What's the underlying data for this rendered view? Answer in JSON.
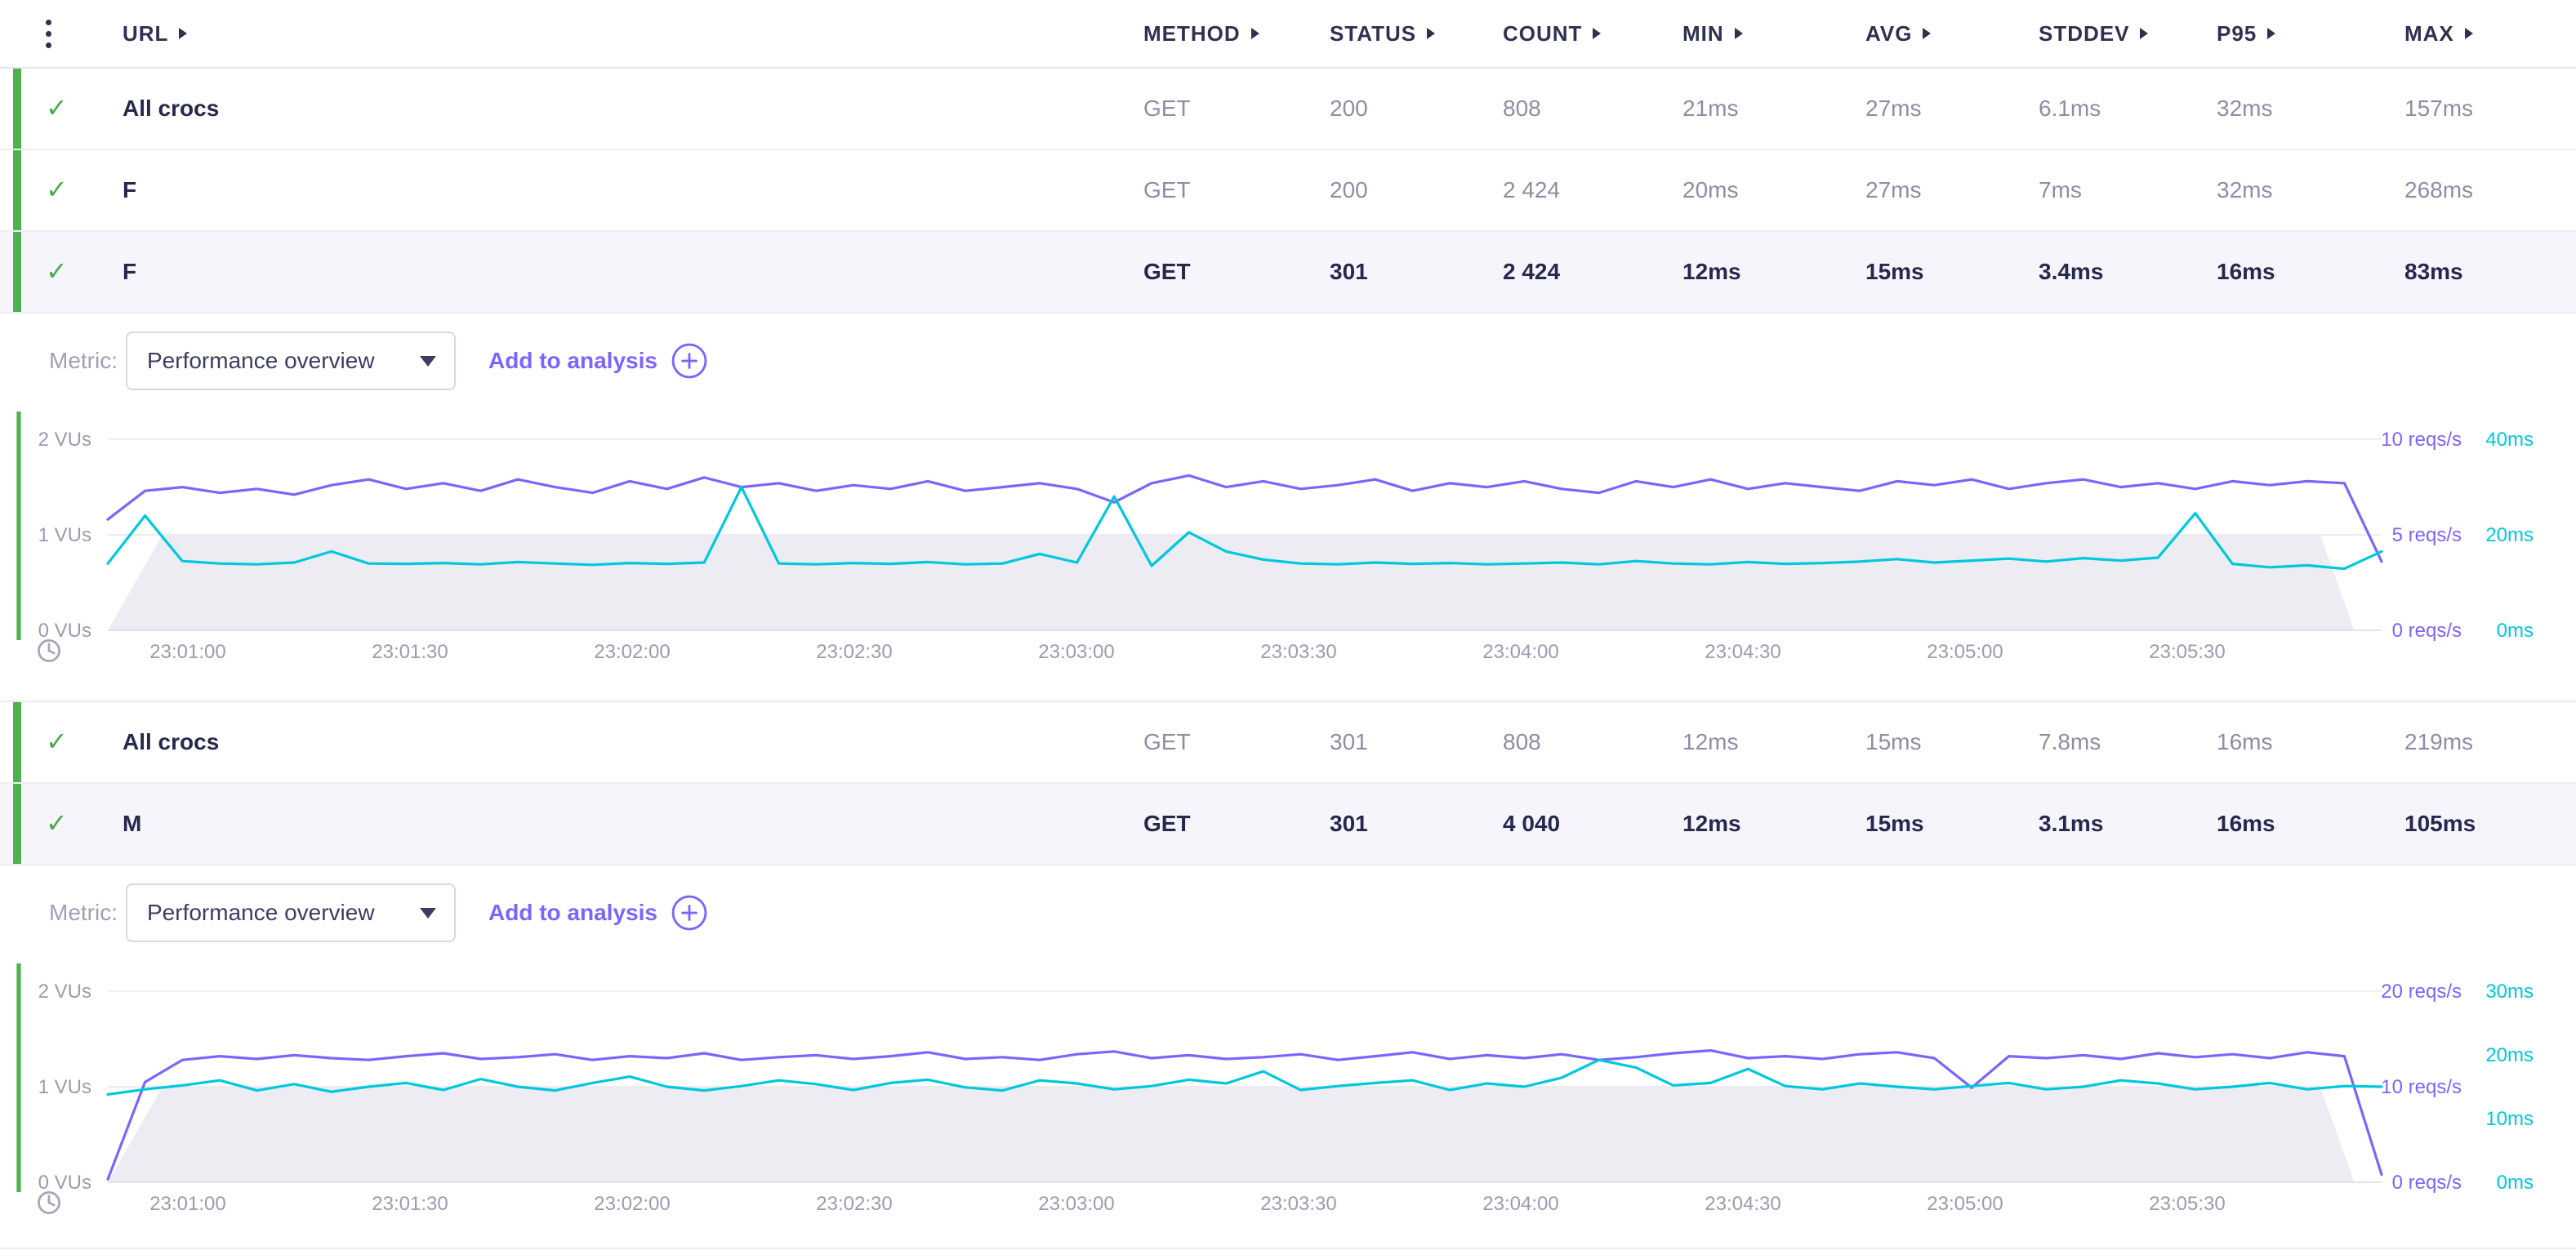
{
  "colors": {
    "purple": "#7d64ff",
    "cyan": "#00c8dc",
    "green": "#4fb04f",
    "gray_area": "#ececf2"
  },
  "header": {
    "menu_icon": "kebab-menu",
    "sort_icon": "triangle-right",
    "columns": [
      "URL",
      "METHOD",
      "STATUS",
      "COUNT",
      "MIN",
      "AVG",
      "STDDEV",
      "P95",
      "MAX"
    ]
  },
  "sections": [
    {
      "rows": [
        {
          "check": "✓",
          "url": "All crocs",
          "method": "GET",
          "status": "200",
          "count": "808",
          "min": "21ms",
          "avg": "27ms",
          "stddev": "6.1ms",
          "p95": "32ms",
          "max": "157ms",
          "selected": false
        },
        {
          "check": "✓",
          "url": "F",
          "method": "GET",
          "status": "200",
          "count": "2 424",
          "min": "20ms",
          "avg": "27ms",
          "stddev": "7ms",
          "p95": "32ms",
          "max": "268ms",
          "selected": false
        },
        {
          "check": "✓",
          "url": "F",
          "method": "GET",
          "status": "301",
          "count": "2 424",
          "min": "12ms",
          "avg": "15ms",
          "stddev": "3.4ms",
          "p95": "16ms",
          "max": "83ms",
          "selected": true
        }
      ],
      "metric_bar": {
        "label": "Metric:",
        "selected_option": "Performance overview",
        "add_button": "Add to analysis"
      }
    },
    {
      "rows": [
        {
          "check": "✓",
          "url": "All crocs",
          "method": "GET",
          "status": "301",
          "count": "808",
          "min": "12ms",
          "avg": "15ms",
          "stddev": "7.8ms",
          "p95": "16ms",
          "max": "219ms",
          "selected": false
        },
        {
          "check": "✓",
          "url": "M",
          "method": "GET",
          "status": "301",
          "count": "4 040",
          "min": "12ms",
          "avg": "15ms",
          "stddev": "3.1ms",
          "p95": "16ms",
          "max": "105ms",
          "selected": true
        }
      ],
      "metric_bar": {
        "label": "Metric:",
        "selected_option": "Performance overview",
        "add_button": "Add to analysis"
      }
    }
  ],
  "chart_data": [
    {
      "type": "line",
      "title": "Performance overview",
      "x_ticks": [
        "23:01:00",
        "23:01:30",
        "23:02:00",
        "23:02:30",
        "23:03:00",
        "23:03:30",
        "23:04:00",
        "23:04:30",
        "23:05:00",
        "23:05:30"
      ],
      "left_axis": {
        "unit": "VUs",
        "ticks": [
          "0 VUs",
          "1 VUs",
          "2 VUs"
        ],
        "max": 2
      },
      "right_labels": [
        {
          "frac": 1,
          "purple": "10 reqs/s",
          "cyan": "40ms"
        },
        {
          "frac": 0.5,
          "purple": "5 reqs/s",
          "cyan": "20ms"
        },
        {
          "frac": 0,
          "purple": "0 reqs/s",
          "cyan": "0ms"
        }
      ],
      "series": [
        {
          "name": "vus",
          "type": "area",
          "color": "gray_area",
          "max": 2,
          "points": [
            [
              0,
              0
            ],
            [
              0.024,
              1
            ],
            [
              0.973,
              1
            ],
            [
              0.988,
              0
            ]
          ]
        },
        {
          "name": "request-rate",
          "unit": "reqs/s",
          "type": "line",
          "color": "purple",
          "max": 10,
          "values": [
            5.8,
            7.3,
            7.5,
            7.2,
            7.4,
            7.1,
            7.6,
            7.9,
            7.4,
            7.7,
            7.3,
            7.9,
            7.5,
            7.2,
            7.8,
            7.4,
            8.0,
            7.5,
            7.7,
            7.3,
            7.6,
            7.4,
            7.8,
            7.3,
            7.5,
            7.7,
            7.4,
            6.7,
            7.7,
            8.1,
            7.5,
            7.8,
            7.4,
            7.6,
            7.9,
            7.3,
            7.7,
            7.5,
            7.8,
            7.4,
            7.2,
            7.8,
            7.5,
            7.9,
            7.4,
            7.7,
            7.5,
            7.3,
            7.8,
            7.6,
            7.9,
            7.4,
            7.7,
            7.9,
            7.5,
            7.7,
            7.4,
            7.8,
            7.6,
            7.8,
            7.7,
            3.6
          ]
        },
        {
          "name": "response-time",
          "unit": "ms",
          "type": "line",
          "color": "cyan",
          "max": 40,
          "values": [
            14,
            24,
            14.5,
            14,
            13.8,
            14.2,
            16.5,
            14,
            13.9,
            14.1,
            13.8,
            14.3,
            14,
            13.7,
            14.1,
            13.9,
            14.2,
            30,
            14,
            13.8,
            14.1,
            13.9,
            14.3,
            13.8,
            14,
            16,
            14.2,
            28,
            13.5,
            20.5,
            16.5,
            14.8,
            14,
            13.8,
            14.2,
            13.9,
            14.1,
            13.8,
            14,
            14.2,
            13.8,
            14.5,
            14,
            13.8,
            14.3,
            13.9,
            14.1,
            14.4,
            14.9,
            14.2,
            14.6,
            15,
            14.4,
            15.1,
            14.6,
            15.2,
            24.5,
            13.9,
            13.2,
            13.6,
            12.9,
            16.5
          ]
        }
      ]
    },
    {
      "type": "line",
      "title": "Performance overview",
      "x_ticks": [
        "23:01:00",
        "23:01:30",
        "23:02:00",
        "23:02:30",
        "23:03:00",
        "23:03:30",
        "23:04:00",
        "23:04:30",
        "23:05:00",
        "23:05:30"
      ],
      "left_axis": {
        "unit": "VUs",
        "ticks": [
          "0 VUs",
          "1 VUs",
          "2 VUs"
        ],
        "max": 2
      },
      "right_labels": [
        {
          "frac": 1,
          "purple": "20 reqs/s",
          "cyan": "30ms"
        },
        {
          "frac": 0.6667,
          "cyan": "20ms"
        },
        {
          "frac": 0.5,
          "purple": "10 reqs/s"
        },
        {
          "frac": 0.3333,
          "cyan": "10ms"
        },
        {
          "frac": 0,
          "purple": "0 reqs/s",
          "cyan": "0ms"
        }
      ],
      "series": [
        {
          "name": "vus",
          "type": "area",
          "color": "gray_area",
          "max": 2,
          "points": [
            [
              0,
              0
            ],
            [
              0.024,
              1
            ],
            [
              0.973,
              1
            ],
            [
              0.988,
              0
            ]
          ]
        },
        {
          "name": "request-rate",
          "unit": "reqs/s",
          "type": "line",
          "color": "purple",
          "max": 20,
          "values": [
            0.3,
            10.5,
            12.8,
            13.2,
            12.9,
            13.3,
            13.0,
            12.8,
            13.2,
            13.5,
            12.9,
            13.1,
            13.4,
            12.8,
            13.2,
            13.0,
            13.5,
            12.8,
            13.1,
            13.3,
            12.9,
            13.2,
            13.6,
            12.9,
            13.1,
            12.8,
            13.4,
            13.7,
            13.0,
            13.3,
            12.9,
            13.1,
            13.4,
            12.8,
            13.2,
            13.6,
            12.9,
            13.3,
            13.0,
            13.4,
            12.8,
            13.1,
            13.5,
            13.8,
            13.0,
            13.2,
            12.9,
            13.4,
            13.6,
            13.0,
            9.9,
            13.2,
            13.0,
            13.3,
            12.9,
            13.5,
            13.1,
            13.4,
            13.0,
            13.6,
            13.2,
            0.8
          ]
        },
        {
          "name": "response-time",
          "unit": "ms",
          "type": "line",
          "color": "cyan",
          "max": 30,
          "values": [
            13.8,
            14.6,
            15.2,
            16.0,
            14.4,
            15.4,
            14.2,
            15.0,
            15.6,
            14.5,
            16.2,
            15.0,
            14.4,
            15.6,
            16.6,
            15.0,
            14.4,
            15.1,
            16.0,
            15.4,
            14.5,
            15.6,
            16.1,
            14.9,
            14.4,
            16.0,
            15.5,
            14.6,
            15.1,
            16.1,
            15.5,
            17.4,
            14.5,
            15.1,
            15.6,
            16.0,
            14.5,
            15.5,
            15.0,
            16.4,
            19.2,
            18.0,
            15.2,
            15.6,
            17.8,
            15.1,
            14.6,
            15.5,
            15.0,
            14.6,
            15.1,
            15.6,
            14.6,
            15.0,
            16.0,
            15.5,
            14.6,
            15.0,
            15.6,
            14.6,
            15.1,
            15.0
          ]
        }
      ]
    }
  ]
}
